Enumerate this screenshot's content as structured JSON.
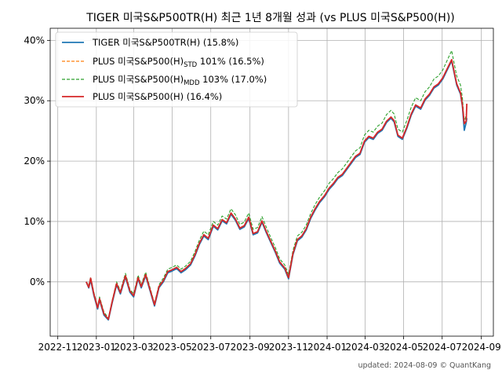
{
  "chart_data": {
    "type": "line",
    "title": "TIGER 미국S&P500TR(H) 최근 1년 8개월 성과 (vs PLUS 미국S&P500(H))",
    "xlabel": "",
    "ylabel": "",
    "x_tick_labels": [
      "2022-11",
      "2023-01",
      "2023-03",
      "2023-05",
      "2023-07",
      "2023-09",
      "2023-11",
      "2024-01",
      "2024-03",
      "2024-05",
      "2024-07",
      "2024-09"
    ],
    "x_ticks": [
      "2022-11-01",
      "2023-01-01",
      "2023-03-01",
      "2023-05-01",
      "2023-07-01",
      "2023-09-01",
      "2023-11-01",
      "2024-01-01",
      "2024-03-01",
      "2024-05-01",
      "2024-07-01",
      "2024-09-01"
    ],
    "x_range": [
      "2022-10-20",
      "2024-09-20"
    ],
    "ylim": [
      -0.09,
      0.42
    ],
    "y_ticks": [
      0,
      0.1,
      0.2,
      0.3,
      0.4
    ],
    "y_tick_labels": [
      "0%",
      "10%",
      "20%",
      "30%",
      "40%"
    ],
    "grid": true,
    "legend_position": "top-left",
    "dates": [
      "2022-12-16",
      "2022-12-20",
      "2022-12-23",
      "2022-12-28",
      "2023-01-03",
      "2023-01-06",
      "2023-01-13",
      "2023-01-20",
      "2023-01-26",
      "2023-02-02",
      "2023-02-08",
      "2023-02-16",
      "2023-02-23",
      "2023-03-01",
      "2023-03-08",
      "2023-03-13",
      "2023-03-20",
      "2023-03-27",
      "2023-04-03",
      "2023-04-10",
      "2023-04-17",
      "2023-04-24",
      "2023-05-01",
      "2023-05-08",
      "2023-05-15",
      "2023-05-22",
      "2023-05-30",
      "2023-06-06",
      "2023-06-13",
      "2023-06-20",
      "2023-06-27",
      "2023-07-05",
      "2023-07-12",
      "2023-07-19",
      "2023-07-26",
      "2023-08-02",
      "2023-08-09",
      "2023-08-16",
      "2023-08-23",
      "2023-08-30",
      "2023-09-06",
      "2023-09-13",
      "2023-09-20",
      "2023-09-27",
      "2023-10-04",
      "2023-10-11",
      "2023-10-18",
      "2023-10-26",
      "2023-11-01",
      "2023-11-08",
      "2023-11-15",
      "2023-11-22",
      "2023-11-29",
      "2023-12-06",
      "2023-12-13",
      "2023-12-20",
      "2023-12-28",
      "2024-01-04",
      "2024-01-11",
      "2024-01-18",
      "2024-01-25",
      "2024-02-01",
      "2024-02-08",
      "2024-02-15",
      "2024-02-22",
      "2024-02-29",
      "2024-03-07",
      "2024-03-14",
      "2024-03-21",
      "2024-03-28",
      "2024-04-04",
      "2024-04-11",
      "2024-04-16",
      "2024-04-22",
      "2024-04-29",
      "2024-05-06",
      "2024-05-13",
      "2024-05-20",
      "2024-05-28",
      "2024-06-04",
      "2024-06-11",
      "2024-06-18",
      "2024-06-25",
      "2024-07-02",
      "2024-07-09",
      "2024-07-16",
      "2024-07-19",
      "2024-07-24",
      "2024-07-30",
      "2024-08-02",
      "2024-08-05",
      "2024-08-08",
      "2024-08-09"
    ],
    "series": [
      {
        "name": "TIGER 미국S&P500TR(H)  (15.8%)",
        "color": "#1f77b4",
        "style": "solid",
        "values": [
          0.0,
          -0.01,
          0.003,
          -0.022,
          -0.045,
          -0.03,
          -0.055,
          -0.063,
          -0.035,
          -0.005,
          -0.02,
          0.008,
          -0.017,
          -0.025,
          0.005,
          -0.01,
          0.01,
          -0.015,
          -0.04,
          -0.01,
          0.0,
          0.015,
          0.018,
          0.022,
          0.015,
          0.02,
          0.028,
          0.043,
          0.062,
          0.076,
          0.07,
          0.092,
          0.086,
          0.101,
          0.096,
          0.112,
          0.102,
          0.087,
          0.091,
          0.105,
          0.078,
          0.081,
          0.099,
          0.081,
          0.065,
          0.049,
          0.031,
          0.021,
          0.005,
          0.045,
          0.068,
          0.074,
          0.086,
          0.105,
          0.119,
          0.131,
          0.141,
          0.153,
          0.161,
          0.171,
          0.176,
          0.186,
          0.196,
          0.206,
          0.211,
          0.231,
          0.239,
          0.236,
          0.246,
          0.251,
          0.264,
          0.271,
          0.265,
          0.241,
          0.236,
          0.254,
          0.276,
          0.291,
          0.286,
          0.301,
          0.309,
          0.321,
          0.326,
          0.336,
          0.351,
          0.366,
          0.351,
          0.326,
          0.311,
          0.291,
          0.251,
          0.264,
          0.271
        ]
      },
      {
        "name": "PLUS 미국S&P500(H)STD 101% (16.5%)",
        "label_main": "PLUS 미국S&P500(H)",
        "label_sub": "STD",
        "label_tail": " 101% (16.5%)",
        "color": "#ff7f0e",
        "style": "dashed",
        "values": [
          0.0,
          -0.008,
          0.005,
          -0.02,
          -0.043,
          -0.028,
          -0.053,
          -0.062,
          -0.033,
          -0.003,
          -0.018,
          0.01,
          -0.015,
          -0.023,
          0.007,
          -0.008,
          0.012,
          -0.013,
          -0.038,
          -0.008,
          0.002,
          0.017,
          0.02,
          0.024,
          0.017,
          0.022,
          0.03,
          0.045,
          0.064,
          0.078,
          0.072,
          0.094,
          0.088,
          0.103,
          0.098,
          0.114,
          0.104,
          0.089,
          0.093,
          0.107,
          0.08,
          0.083,
          0.101,
          0.083,
          0.067,
          0.051,
          0.033,
          0.023,
          0.007,
          0.047,
          0.07,
          0.076,
          0.088,
          0.107,
          0.121,
          0.133,
          0.143,
          0.155,
          0.163,
          0.173,
          0.178,
          0.188,
          0.198,
          0.208,
          0.213,
          0.233,
          0.241,
          0.238,
          0.248,
          0.253,
          0.266,
          0.273,
          0.267,
          0.243,
          0.238,
          0.256,
          0.278,
          0.293,
          0.288,
          0.303,
          0.311,
          0.323,
          0.328,
          0.338,
          0.353,
          0.368,
          0.353,
          0.328,
          0.313,
          0.293,
          0.253,
          0.266,
          0.273
        ]
      },
      {
        "name": "PLUS 미국S&P500(H)MDD 103% (17.0%)",
        "label_main": "PLUS 미국S&P500(H)",
        "label_sub": "MDD",
        "label_tail": " 103% (17.0%)",
        "color": "#2ca02c",
        "style": "dashed",
        "values": [
          0.0,
          -0.006,
          0.008,
          -0.017,
          -0.041,
          -0.025,
          -0.05,
          -0.06,
          -0.031,
          0.0,
          -0.015,
          0.014,
          -0.012,
          -0.02,
          0.011,
          -0.005,
          0.016,
          -0.01,
          -0.036,
          -0.005,
          0.006,
          0.021,
          0.024,
          0.028,
          0.021,
          0.026,
          0.034,
          0.05,
          0.069,
          0.084,
          0.078,
          0.1,
          0.094,
          0.109,
          0.104,
          0.121,
          0.111,
          0.095,
          0.099,
          0.114,
          0.087,
          0.09,
          0.108,
          0.09,
          0.073,
          0.057,
          0.038,
          0.028,
          0.012,
          0.052,
          0.076,
          0.082,
          0.094,
          0.113,
          0.128,
          0.14,
          0.151,
          0.163,
          0.171,
          0.181,
          0.187,
          0.197,
          0.207,
          0.217,
          0.222,
          0.243,
          0.251,
          0.248,
          0.258,
          0.263,
          0.277,
          0.284,
          0.278,
          0.253,
          0.248,
          0.267,
          0.289,
          0.305,
          0.3,
          0.315,
          0.323,
          0.336,
          0.341,
          0.351,
          0.367,
          0.383,
          0.367,
          0.341,
          0.326,
          0.305,
          0.264,
          0.277,
          0.284
        ]
      },
      {
        "name": "PLUS 미국S&P500(H)  (16.4%)",
        "color": "#d62728",
        "style": "solid",
        "values": [
          0.0,
          -0.009,
          0.006,
          -0.02,
          -0.043,
          -0.028,
          -0.053,
          -0.062,
          -0.033,
          -0.003,
          -0.018,
          0.01,
          -0.015,
          -0.023,
          0.007,
          -0.008,
          0.012,
          -0.013,
          -0.038,
          -0.008,
          0.002,
          0.017,
          0.02,
          0.024,
          0.017,
          0.022,
          0.03,
          0.045,
          0.064,
          0.078,
          0.072,
          0.094,
          0.088,
          0.103,
          0.098,
          0.114,
          0.104,
          0.089,
          0.093,
          0.107,
          0.08,
          0.083,
          0.101,
          0.083,
          0.067,
          0.051,
          0.033,
          0.023,
          0.007,
          0.047,
          0.07,
          0.076,
          0.088,
          0.107,
          0.121,
          0.133,
          0.143,
          0.155,
          0.163,
          0.173,
          0.178,
          0.188,
          0.198,
          0.208,
          0.213,
          0.233,
          0.241,
          0.238,
          0.248,
          0.253,
          0.266,
          0.273,
          0.267,
          0.243,
          0.238,
          0.256,
          0.278,
          0.293,
          0.288,
          0.303,
          0.311,
          0.323,
          0.328,
          0.338,
          0.353,
          0.368,
          0.353,
          0.328,
          0.313,
          0.293,
          0.262,
          0.266,
          0.295
        ]
      }
    ]
  },
  "footer": {
    "text": "updated: 2024-08-09 © QuantKang"
  }
}
